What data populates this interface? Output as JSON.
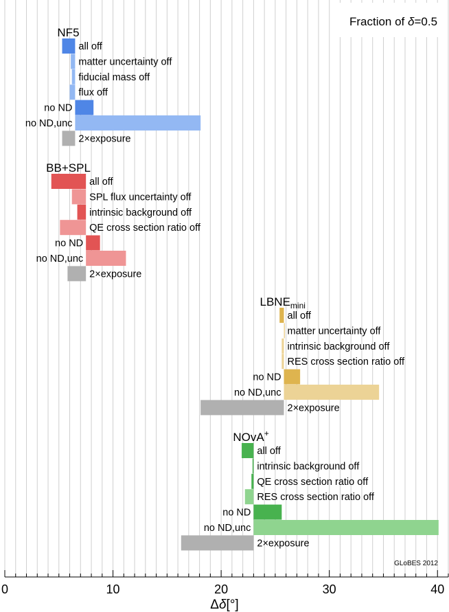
{
  "chart_data": {
    "type": "bar",
    "orientation": "horizontal-floating",
    "title": "Fraction of δ=0.5",
    "title_parts": {
      "prefix": "Fraction of ",
      "symbol": "δ",
      "suffix": "=0.5"
    },
    "xlabel": "Δδ[°]",
    "xlabel_parts": {
      "delta": "Δ",
      "symbol": "δ",
      "unit": "[°]"
    },
    "xlim": [
      0,
      41
    ],
    "xticks": [
      0,
      10,
      20,
      30,
      40
    ],
    "minor_grid_step": 1,
    "credit": "GLoBES 2012",
    "groups": [
      {
        "name": "NF5",
        "subscript": "",
        "superscript": "",
        "baseline": 6.5,
        "color_dark": "#4f86e6",
        "color_light": "#93b8f3",
        "color_gray": "#b0b0b0",
        "bars": [
          {
            "label": "all off",
            "value": 5.3,
            "shade": "dark"
          },
          {
            "label": "matter uncertainty off",
            "value": 6.1,
            "shade": "light"
          },
          {
            "label": "fiducial mass off",
            "value": 6.2,
            "shade": "light"
          },
          {
            "label": "flux off",
            "value": 6.0,
            "shade": "light"
          },
          {
            "label": "no ND",
            "value": 8.2,
            "shade": "dark"
          },
          {
            "label": "no ND,unc",
            "value": 18.1,
            "shade": "light"
          },
          {
            "label": "2×exposure",
            "value": 5.3,
            "shade": "gray"
          }
        ]
      },
      {
        "name": "BB+SPL",
        "subscript": "",
        "superscript": "",
        "baseline": 7.5,
        "color_dark": "#e25454",
        "color_light": "#ef9595",
        "color_gray": "#b0b0b0",
        "bars": [
          {
            "label": "all off",
            "value": 4.3,
            "shade": "dark"
          },
          {
            "label": "SPL flux uncertainty off",
            "value": 6.2,
            "shade": "light"
          },
          {
            "label": "intrinsic background off",
            "value": 6.7,
            "shade": "dark"
          },
          {
            "label": "QE cross section ratio off",
            "value": 5.1,
            "shade": "light"
          },
          {
            "label": "no ND",
            "value": 8.8,
            "shade": "dark"
          },
          {
            "label": "no ND,unc",
            "value": 11.2,
            "shade": "light"
          },
          {
            "label": "2×exposure",
            "value": 5.8,
            "shade": "gray"
          }
        ]
      },
      {
        "name": "LBNE",
        "subscript": "mini",
        "superscript": "",
        "baseline": 25.8,
        "color_dark": "#deb44f",
        "color_light": "#ecd396",
        "color_gray": "#b0b0b0",
        "bars": [
          {
            "label": "all off",
            "value": 25.4,
            "shade": "dark"
          },
          {
            "label": "matter uncertainty off",
            "value": 25.8,
            "shade": "light"
          },
          {
            "label": "intrinsic background off",
            "value": 25.6,
            "shade": "light"
          },
          {
            "label": "RES cross section ratio off",
            "value": 25.6,
            "shade": "light"
          },
          {
            "label": "no ND",
            "value": 27.3,
            "shade": "dark"
          },
          {
            "label": "no ND,unc",
            "value": 34.6,
            "shade": "light"
          },
          {
            "label": "2×exposure",
            "value": 18.1,
            "shade": "gray"
          }
        ]
      },
      {
        "name": "NOvA",
        "subscript": "",
        "superscript": "+",
        "baseline": 23.0,
        "color_dark": "#48b24f",
        "color_light": "#8fd48f",
        "color_gray": "#b0b0b0",
        "bars": [
          {
            "label": "all off",
            "value": 21.9,
            "shade": "dark"
          },
          {
            "label": "intrinsic background off",
            "value": 22.9,
            "shade": "dark"
          },
          {
            "label": "QE cross section ratio off",
            "value": 22.8,
            "shade": "dark"
          },
          {
            "label": "RES cross section ratio off",
            "value": 22.2,
            "shade": "light"
          },
          {
            "label": "no ND",
            "value": 25.6,
            "shade": "dark"
          },
          {
            "label": "no ND,unc",
            "value": 40.1,
            "shade": "light"
          },
          {
            "label": "2×exposure",
            "value": 16.3,
            "shade": "gray"
          }
        ]
      }
    ]
  }
}
